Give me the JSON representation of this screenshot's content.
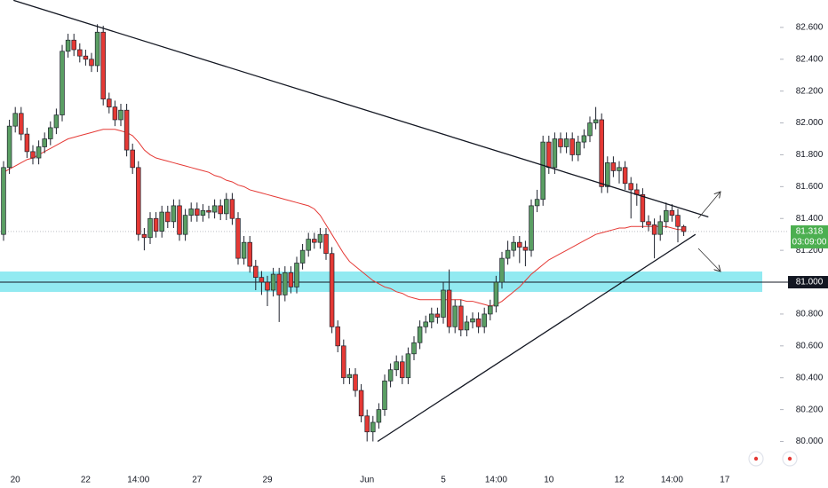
{
  "chart_data": {
    "type": "candlestick",
    "categories": [
      null,
      null,
      "20",
      null,
      null,
      null,
      null,
      null,
      null,
      null,
      null,
      null,
      null,
      null,
      "22",
      null,
      null,
      null,
      null,
      null,
      null,
      null,
      null,
      "14:00",
      null,
      null,
      null,
      null,
      null,
      null,
      null,
      null,
      null,
      "27",
      null,
      null,
      null,
      null,
      null,
      null,
      null,
      null,
      null,
      null,
      null,
      "29",
      null,
      null,
      null,
      null,
      null,
      null,
      null,
      null,
      null,
      null,
      null,
      null,
      null,
      null,
      null,
      null,
      "Jun",
      null,
      null,
      null,
      null,
      null,
      null,
      null,
      null,
      null,
      null,
      null,
      null,
      "5",
      null,
      null,
      null,
      null,
      null,
      null,
      null,
      null,
      "14:00",
      null,
      null,
      null,
      null,
      null,
      null,
      null,
      null,
      "10",
      null,
      null,
      null,
      null,
      null,
      null,
      null,
      null,
      null,
      null,
      null,
      "12",
      null,
      null,
      null,
      null,
      null,
      null,
      null,
      null,
      "14:00",
      null,
      null,
      null,
      null,
      null,
      null,
      null,
      null,
      "17"
    ],
    "open": [
      81.3,
      81.72,
      81.98,
      82.06,
      81.93,
      81.82,
      81.78,
      81.85,
      81.9,
      81.97,
      82.05,
      82.45,
      82.52,
      82.46,
      82.42,
      82.4,
      82.36,
      82.57,
      82.15,
      82.1,
      82.02,
      82.08,
      81.83,
      81.72,
      81.3,
      81.28,
      81.4,
      81.32,
      81.44,
      81.38,
      81.48,
      81.3,
      81.42,
      81.46,
      81.42,
      81.45,
      81.44,
      81.48,
      81.43,
      81.52,
      81.4,
      81.15,
      81.25,
      81.1,
      81.03,
      81.0,
      80.95,
      81.05,
      80.92,
      81.06,
      80.97,
      81.12,
      81.2,
      81.27,
      81.25,
      81.3,
      81.18,
      80.72,
      80.6,
      80.4,
      80.42,
      80.32,
      80.16,
      80.06,
      80.12,
      80.2,
      80.38,
      80.45,
      80.5,
      80.4,
      80.55,
      80.62,
      80.72,
      80.75,
      80.8,
      80.78,
      80.95,
      80.72,
      80.85,
      80.7,
      80.75,
      80.77,
      80.72,
      80.8,
      80.85,
      81.0,
      81.15,
      81.2,
      81.25,
      81.22,
      81.2,
      81.48,
      81.52,
      81.88,
      81.72,
      81.9,
      81.85,
      81.9,
      81.8,
      81.88,
      81.92,
      82.0,
      82.02,
      81.6,
      81.75,
      81.7,
      81.72,
      81.62,
      81.58,
      81.55,
      81.38,
      81.36,
      81.3,
      81.38,
      81.45,
      81.42,
      81.35,
      null,
      null,
      null,
      null,
      null,
      null,
      null
    ],
    "high": [
      81.76,
      82.02,
      82.1,
      82.1,
      81.97,
      81.86,
      81.89,
      81.94,
      82.01,
      82.09,
      82.49,
      82.56,
      82.56,
      82.5,
      82.46,
      82.44,
      82.62,
      82.61,
      82.19,
      82.14,
      82.12,
      82.12,
      81.87,
      81.76,
      81.34,
      81.44,
      81.44,
      81.48,
      81.48,
      81.52,
      81.52,
      81.46,
      81.5,
      81.5,
      81.49,
      81.48,
      81.52,
      81.52,
      81.56,
      81.56,
      81.44,
      81.29,
      81.29,
      81.14,
      81.07,
      81.04,
      81.09,
      81.09,
      81.1,
      81.1,
      81.16,
      81.24,
      81.31,
      81.31,
      81.34,
      81.34,
      81.22,
      80.76,
      80.64,
      80.46,
      80.46,
      80.36,
      80.2,
      80.16,
      80.24,
      80.42,
      80.49,
      80.54,
      80.54,
      80.59,
      80.66,
      80.76,
      80.79,
      80.84,
      80.84,
      81.0,
      81.08,
      80.89,
      80.89,
      80.79,
      80.81,
      80.81,
      80.84,
      80.89,
      81.04,
      81.19,
      81.26,
      81.29,
      81.29,
      81.26,
      81.52,
      81.58,
      81.92,
      81.92,
      81.94,
      81.94,
      81.94,
      81.94,
      81.92,
      81.96,
      82.04,
      82.1,
      82.06,
      81.79,
      81.79,
      81.76,
      81.76,
      81.66,
      81.62,
      81.59,
      81.42,
      81.4,
      81.42,
      81.5,
      81.49,
      81.46,
      81.36,
      null,
      null,
      null,
      null,
      null,
      null,
      null
    ],
    "low": [
      81.26,
      81.68,
      81.94,
      81.89,
      81.78,
      81.74,
      81.74,
      81.81,
      81.86,
      81.93,
      82.01,
      82.41,
      82.42,
      82.38,
      82.36,
      82.32,
      82.32,
      82.11,
      82.06,
      81.98,
      81.98,
      81.79,
      81.68,
      81.26,
      81.2,
      81.24,
      81.28,
      81.28,
      81.34,
      81.34,
      81.26,
      81.26,
      81.38,
      81.38,
      81.38,
      81.4,
      81.4,
      81.39,
      81.39,
      81.36,
      81.11,
      81.11,
      81.06,
      80.95,
      80.92,
      80.85,
      80.91,
      80.75,
      80.88,
      80.93,
      80.93,
      81.08,
      81.16,
      81.21,
      81.21,
      81.14,
      80.68,
      80.56,
      80.36,
      80.36,
      80.28,
      80.12,
      80.0,
      80.0,
      80.08,
      80.16,
      80.34,
      80.41,
      80.36,
      80.36,
      80.51,
      80.58,
      80.68,
      80.71,
      80.74,
      80.74,
      80.68,
      80.68,
      80.66,
      80.66,
      80.71,
      80.68,
      80.68,
      80.76,
      80.81,
      80.96,
      81.11,
      81.16,
      81.12,
      81.1,
      81.16,
      81.44,
      81.48,
      81.68,
      81.68,
      81.81,
      81.81,
      81.76,
      81.76,
      81.84,
      81.88,
      81.96,
      81.56,
      81.56,
      81.66,
      81.62,
      81.58,
      81.4,
      81.48,
      81.34,
      81.32,
      81.15,
      81.26,
      81.34,
      81.38,
      81.25,
      81.29,
      null,
      null,
      null,
      null,
      null,
      null,
      null
    ],
    "close": [
      81.72,
      81.98,
      82.06,
      81.93,
      81.82,
      81.78,
      81.85,
      81.9,
      81.97,
      82.05,
      82.45,
      82.52,
      82.46,
      82.42,
      82.4,
      82.36,
      82.57,
      82.15,
      82.1,
      82.02,
      82.08,
      81.83,
      81.72,
      81.3,
      81.28,
      81.4,
      81.32,
      81.44,
      81.38,
      81.48,
      81.3,
      81.42,
      81.46,
      81.42,
      81.45,
      81.44,
      81.48,
      81.43,
      81.52,
      81.4,
      81.15,
      81.25,
      81.1,
      81.03,
      81.0,
      80.95,
      81.05,
      80.92,
      81.06,
      80.97,
      81.12,
      81.2,
      81.27,
      81.25,
      81.3,
      81.18,
      80.72,
      80.6,
      80.4,
      80.42,
      80.32,
      80.16,
      80.06,
      80.12,
      80.2,
      80.38,
      80.45,
      80.5,
      80.4,
      80.55,
      80.62,
      80.72,
      80.75,
      80.8,
      80.78,
      80.95,
      80.72,
      80.85,
      80.7,
      80.75,
      80.77,
      80.72,
      80.8,
      80.85,
      81.0,
      81.15,
      81.2,
      81.25,
      81.22,
      81.2,
      81.48,
      81.52,
      81.88,
      81.72,
      81.9,
      81.85,
      81.9,
      81.8,
      81.88,
      81.92,
      82.0,
      82.02,
      81.6,
      81.75,
      81.7,
      81.72,
      81.62,
      81.58,
      81.55,
      81.38,
      81.36,
      81.3,
      81.38,
      81.45,
      81.42,
      81.35,
      81.318,
      null,
      null,
      null,
      null,
      null,
      null,
      null
    ],
    "up_color": "#5a9e63",
    "down_color": "#e53935",
    "ylim": [
      79.819,
      82.772
    ],
    "yticks": [
      {
        "value": 80.0,
        "label": "80.000"
      },
      {
        "value": 80.2,
        "label": "80.200"
      },
      {
        "value": 80.4,
        "label": "80.400"
      },
      {
        "value": 80.6,
        "label": "80.600"
      },
      {
        "value": 80.8,
        "label": "80.800"
      },
      {
        "value": 81.2,
        "label": "81.200"
      },
      {
        "value": 81.4,
        "label": "81.400"
      },
      {
        "value": 81.6,
        "label": "81.600"
      },
      {
        "value": 81.8,
        "label": "81.800"
      },
      {
        "value": 82.0,
        "label": "82.000"
      },
      {
        "value": 82.2,
        "label": "82.200"
      },
      {
        "value": 82.4,
        "label": "82.400"
      },
      {
        "value": 82.6,
        "label": "82.600"
      }
    ],
    "moving_average": {
      "color": "#e53935",
      "values": [
        81.69,
        81.71,
        81.73,
        81.75,
        81.77,
        81.78,
        81.8,
        81.82,
        81.84,
        81.86,
        81.88,
        81.9,
        81.91,
        81.92,
        81.93,
        81.94,
        81.95,
        81.96,
        81.96,
        81.96,
        81.95,
        81.94,
        81.92,
        81.88,
        81.83,
        81.8,
        81.78,
        81.77,
        81.76,
        81.75,
        81.74,
        81.73,
        81.72,
        81.71,
        81.7,
        81.69,
        81.67,
        81.66,
        81.64,
        81.63,
        81.61,
        81.6,
        81.58,
        81.57,
        81.56,
        81.55,
        81.54,
        81.53,
        81.52,
        81.51,
        81.5,
        81.49,
        81.48,
        81.46,
        81.42,
        81.36,
        81.3,
        81.24,
        81.18,
        81.13,
        81.1,
        81.07,
        81.04,
        81.01,
        80.99,
        80.97,
        80.96,
        80.94,
        80.93,
        80.91,
        80.9,
        80.89,
        80.89,
        80.89,
        80.89,
        80.89,
        80.89,
        80.89,
        80.89,
        80.88,
        80.88,
        80.87,
        80.86,
        80.85,
        80.86,
        80.88,
        80.91,
        80.94,
        80.97,
        81.01,
        81.05,
        81.08,
        81.11,
        81.14,
        81.16,
        81.18,
        81.2,
        81.22,
        81.24,
        81.26,
        81.28,
        81.3,
        81.31,
        81.32,
        81.33,
        81.34,
        81.34,
        81.35,
        81.35,
        81.35,
        81.35,
        81.35,
        81.35,
        81.35,
        81.34,
        81.33,
        81.33,
        null,
        null,
        null,
        null,
        null,
        null,
        null
      ]
    },
    "trendlines": [
      {
        "x": [
          1.7,
          120.2
        ],
        "y": [
          82.77,
          81.41
        ]
      },
      {
        "x": [
          63.8,
          118
        ],
        "y": [
          80.0,
          81.3
        ]
      }
    ],
    "support": {
      "level": {
        "value": 81.0,
        "label": "81.000"
      },
      "zone": [
        80.939,
        81.067
      ],
      "color": "#7fe6ee"
    },
    "last_price": 81.318,
    "last_price_color": "#4caf50",
    "countdown": "03:09:00"
  }
}
